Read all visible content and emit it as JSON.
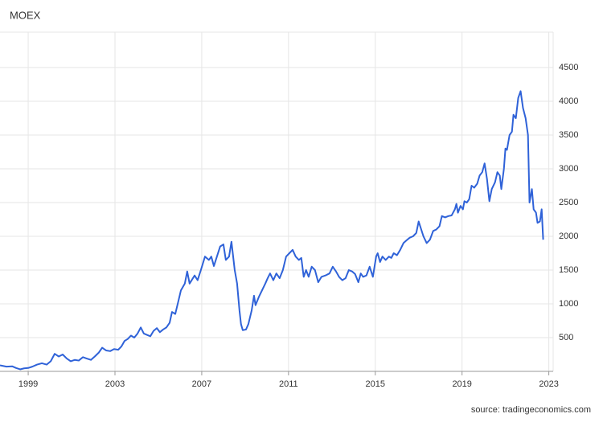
{
  "chart_data": {
    "type": "line",
    "title": "MOEX",
    "source": "source: tradingeconomics.com",
    "color": "#2f62d8",
    "grid": true,
    "xlim": [
      1997.7,
      2023.2
    ],
    "xticks": [
      1999,
      2003,
      2007,
      2011,
      2015,
      2019,
      2023
    ],
    "ylim": [
      0,
      5000
    ],
    "yticks": [
      500,
      1000,
      1500,
      2000,
      2500,
      3000,
      3500,
      4000,
      4500
    ],
    "x": [
      1997.7,
      1998.0,
      1998.26,
      1998.44,
      1998.63,
      1998.81,
      1999.0,
      1999.19,
      1999.41,
      1999.63,
      1999.85,
      2000.04,
      2000.22,
      2000.41,
      2000.59,
      2000.78,
      2000.96,
      2001.15,
      2001.33,
      2001.52,
      2001.7,
      2001.89,
      2002.07,
      2002.26,
      2002.41,
      2002.59,
      2002.78,
      2002.96,
      2003.15,
      2003.3,
      2003.44,
      2003.59,
      2003.74,
      2003.89,
      2004.04,
      2004.19,
      2004.33,
      2004.48,
      2004.63,
      2004.78,
      2004.93,
      2005.07,
      2005.22,
      2005.37,
      2005.52,
      2005.63,
      2005.78,
      2005.93,
      2006.04,
      2006.22,
      2006.33,
      2006.44,
      2006.67,
      2006.81,
      2006.96,
      2007.15,
      2007.33,
      2007.44,
      2007.56,
      2007.7,
      2007.85,
      2008.0,
      2008.11,
      2008.26,
      2008.37,
      2008.52,
      2008.63,
      2008.74,
      2008.81,
      2008.89,
      2009.04,
      2009.15,
      2009.3,
      2009.41,
      2009.48,
      2009.63,
      2009.78,
      2009.93,
      2010.04,
      2010.15,
      2010.3,
      2010.44,
      2010.59,
      2010.74,
      2010.89,
      2011.04,
      2011.19,
      2011.33,
      2011.48,
      2011.59,
      2011.7,
      2011.81,
      2011.93,
      2012.07,
      2012.22,
      2012.37,
      2012.52,
      2012.7,
      2012.89,
      2013.04,
      2013.19,
      2013.33,
      2013.48,
      2013.63,
      2013.78,
      2013.93,
      2014.07,
      2014.22,
      2014.33,
      2014.44,
      2014.59,
      2014.74,
      2014.89,
      2015.04,
      2015.11,
      2015.22,
      2015.33,
      2015.48,
      2015.63,
      2015.74,
      2015.85,
      2016.0,
      2016.15,
      2016.3,
      2016.44,
      2016.59,
      2016.74,
      2016.89,
      2017.0,
      2017.07,
      2017.22,
      2017.37,
      2017.52,
      2017.67,
      2017.81,
      2017.96,
      2018.07,
      2018.22,
      2018.37,
      2018.52,
      2018.67,
      2018.74,
      2018.81,
      2018.93,
      2019.04,
      2019.11,
      2019.22,
      2019.33,
      2019.44,
      2019.56,
      2019.7,
      2019.81,
      2019.93,
      2020.04,
      2020.15,
      2020.26,
      2020.37,
      2020.52,
      2020.63,
      2020.74,
      2020.81,
      2020.93,
      2021.0,
      2021.07,
      2021.19,
      2021.3,
      2021.37,
      2021.48,
      2021.59,
      2021.7,
      2021.81,
      2021.93,
      2022.04,
      2022.11,
      2022.22,
      2022.3,
      2022.41,
      2022.48,
      2022.59,
      2022.67,
      2022.74
    ],
    "values": [
      90,
      70,
      75,
      50,
      30,
      45,
      50,
      70,
      100,
      120,
      100,
      150,
      260,
      220,
      250,
      190,
      150,
      170,
      160,
      210,
      190,
      170,
      220,
      280,
      350,
      310,
      300,
      330,
      320,
      370,
      450,
      480,
      530,
      500,
      560,
      650,
      560,
      540,
      520,
      600,
      640,
      580,
      620,
      650,
      720,
      880,
      850,
      1050,
      1200,
      1300,
      1480,
      1300,
      1420,
      1350,
      1500,
      1700,
      1650,
      1700,
      1560,
      1700,
      1850,
      1880,
      1650,
      1700,
      1920,
      1500,
      1300,
      900,
      700,
      610,
      620,
      700,
      900,
      1120,
      980,
      1100,
      1200,
      1300,
      1380,
      1450,
      1350,
      1450,
      1380,
      1500,
      1700,
      1750,
      1800,
      1700,
      1650,
      1680,
      1400,
      1500,
      1400,
      1550,
      1500,
      1320,
      1400,
      1420,
      1450,
      1550,
      1480,
      1400,
      1350,
      1380,
      1500,
      1480,
      1440,
      1320,
      1450,
      1400,
      1420,
      1550,
      1400,
      1700,
      1750,
      1620,
      1700,
      1650,
      1700,
      1680,
      1750,
      1720,
      1800,
      1900,
      1940,
      1980,
      2000,
      2050,
      2220,
      2150,
      2000,
      1900,
      1950,
      2080,
      2100,
      2150,
      2300,
      2280,
      2300,
      2310,
      2400,
      2480,
      2350,
      2450,
      2400,
      2520,
      2500,
      2550,
      2750,
      2720,
      2780,
      2900,
      2950,
      3080,
      2850,
      2520,
      2700,
      2800,
      2950,
      2900,
      2700,
      3000,
      3300,
      3280,
      3500,
      3550,
      3800,
      3750,
      4050,
      4150,
      3900,
      3750,
      3500,
      2500,
      2700,
      2400,
      2350,
      2200,
      2220,
      2400,
      1950
    ]
  }
}
